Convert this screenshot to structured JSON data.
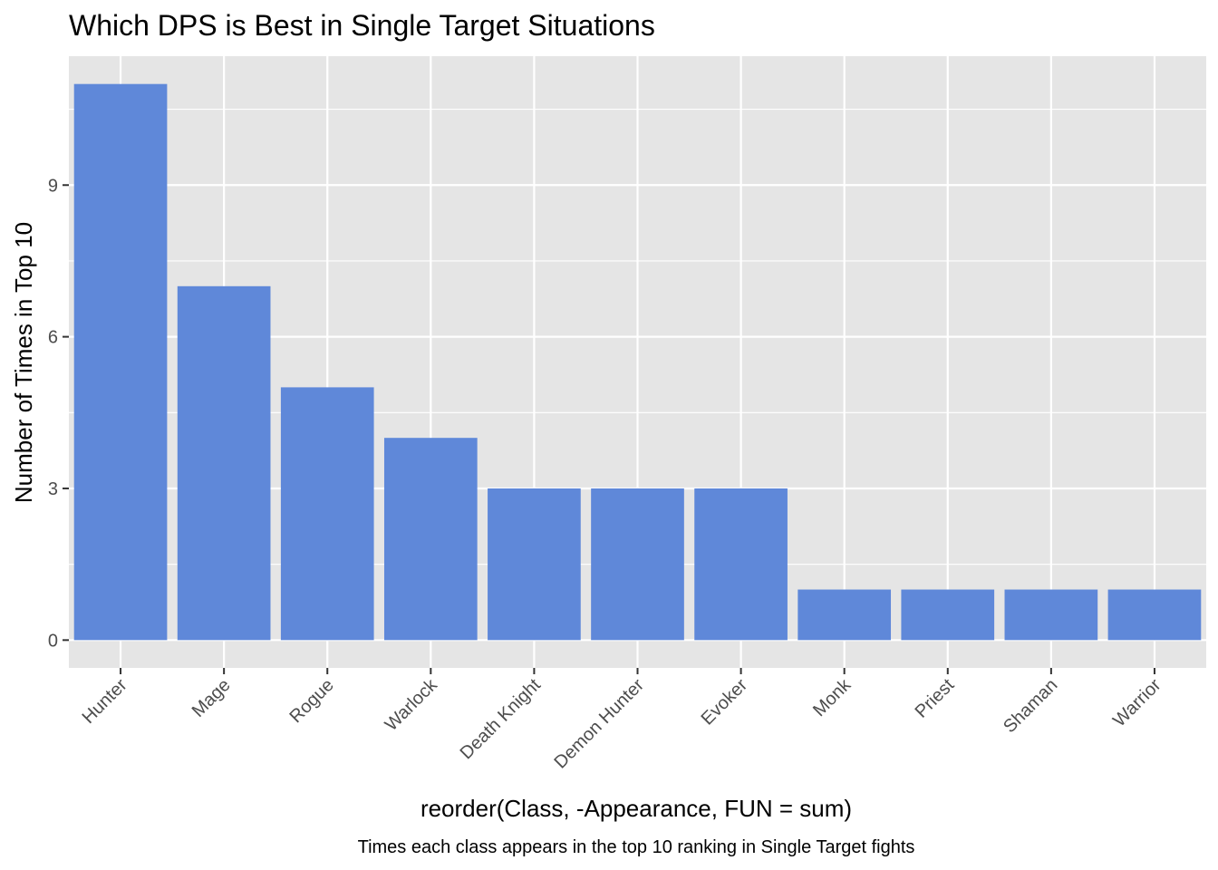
{
  "chart_data": {
    "type": "bar",
    "title": "Which DPS is Best in Single Target Situations",
    "xlabel": "reorder(Class, -Appearance, FUN = sum)",
    "ylabel": "Number of Times in Top 10",
    "caption": "Times each class appears in the top 10 ranking in Single Target fights",
    "categories": [
      "Hunter",
      "Mage",
      "Rogue",
      "Warlock",
      "Death Knight",
      "Demon Hunter",
      "Evoker",
      "Monk",
      "Priest",
      "Shaman",
      "Warrior"
    ],
    "values": [
      11,
      7,
      5,
      4,
      3,
      3,
      3,
      1,
      1,
      1,
      1
    ],
    "ylim": [
      -0.55,
      11.55
    ],
    "yticks": [
      0,
      3,
      6,
      9
    ],
    "grid": true,
    "bar_color": "#5f88d9",
    "panel_color": "#e5e5e5",
    "grid_color": "#ffffff",
    "tick_color": "#333333"
  }
}
